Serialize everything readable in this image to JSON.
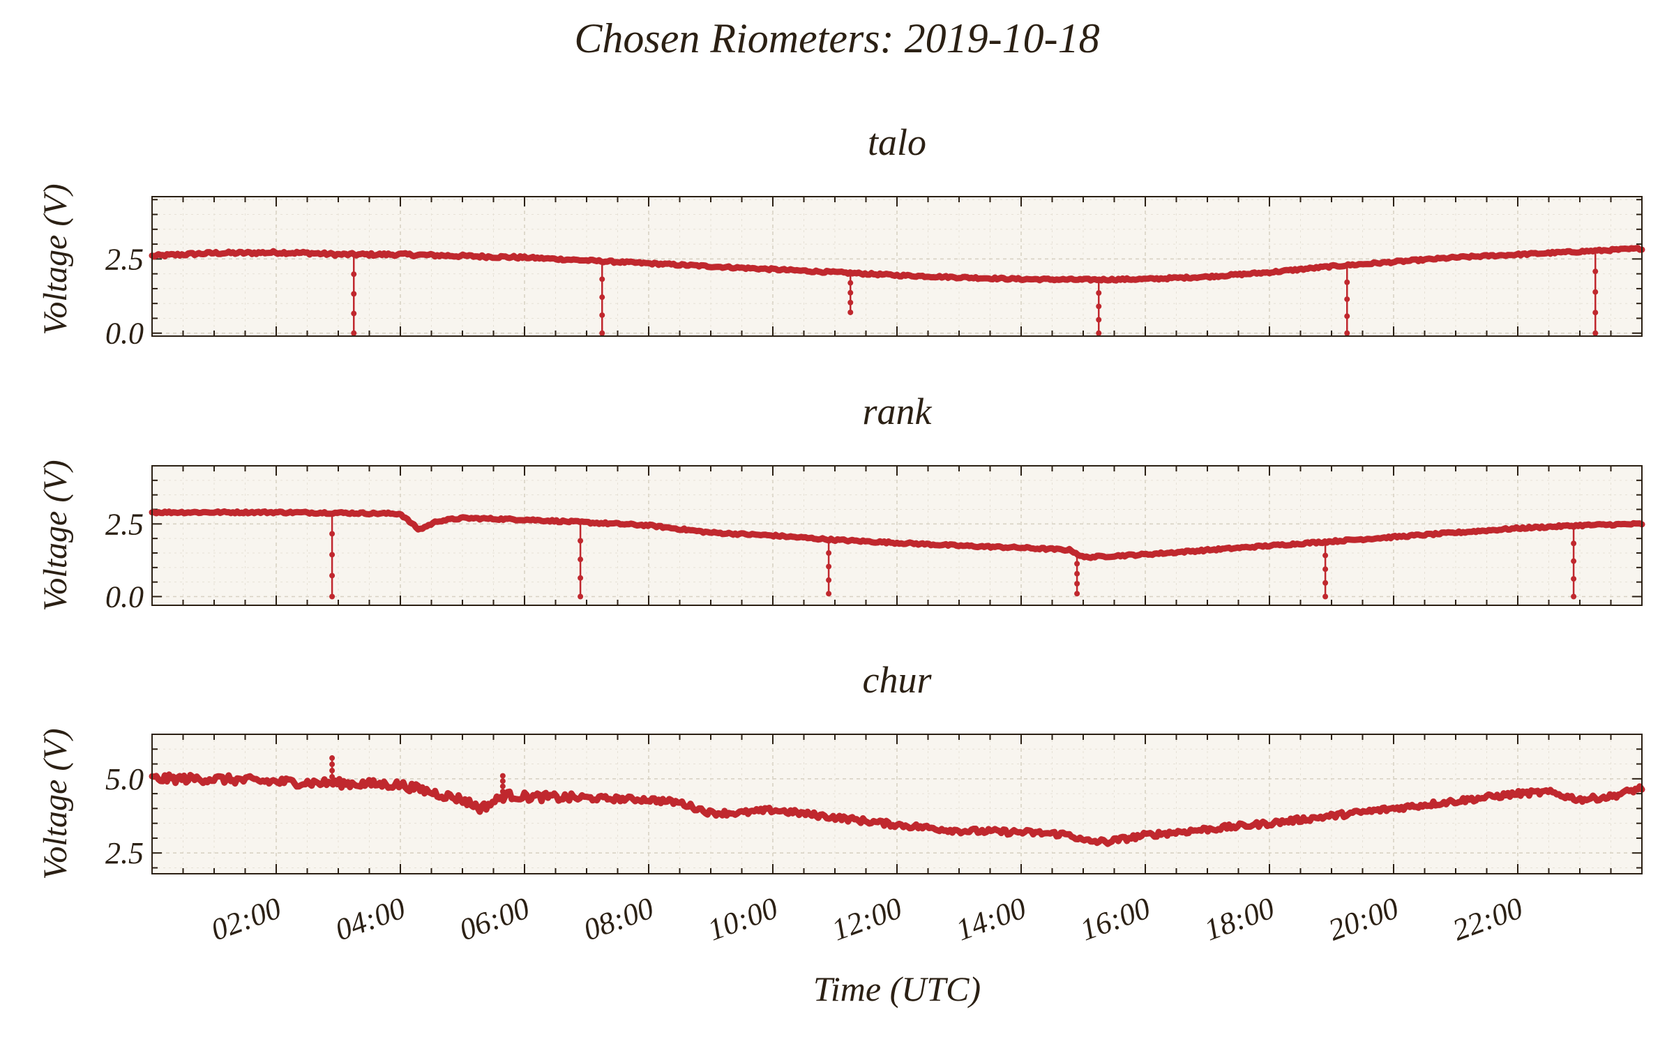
{
  "suptitle": "Chosen Riometers: 2019-10-18",
  "xlabel": "Time (UTC)",
  "ylabel": "Voltage (V)",
  "x_ticks": [
    "02:00",
    "04:00",
    "06:00",
    "08:00",
    "10:00",
    "12:00",
    "14:00",
    "16:00",
    "18:00",
    "20:00",
    "22:00"
  ],
  "color": "#c0282e",
  "chart_data": [
    {
      "type": "line",
      "title": "talo",
      "xlabel": "",
      "ylabel": "Voltage (V)",
      "x_unit": "hours UTC",
      "xlim": [
        0,
        24
      ],
      "ylim": [
        -0.1,
        4.6
      ],
      "y_ticks": [
        "0.0",
        "2.5"
      ],
      "grid": true,
      "series": [
        {
          "x": [
            0,
            0.5,
            1,
            1.5,
            2,
            2.5,
            3,
            4,
            5,
            6,
            7,
            8,
            9,
            10,
            11,
            12,
            13,
            14,
            15,
            16,
            17,
            18,
            19,
            20,
            21,
            22,
            23,
            24
          ],
          "y": [
            2.6,
            2.65,
            2.7,
            2.7,
            2.72,
            2.7,
            2.65,
            2.65,
            2.6,
            2.55,
            2.45,
            2.35,
            2.25,
            2.15,
            2.05,
            1.95,
            1.88,
            1.82,
            1.8,
            1.82,
            1.9,
            2.05,
            2.25,
            2.4,
            2.55,
            2.65,
            2.75,
            2.85
          ],
          "spikes": [
            {
              "x": 3.25,
              "y": 0.0
            },
            {
              "x": 7.25,
              "y": 0.0
            },
            {
              "x": 11.25,
              "y": 0.7
            },
            {
              "x": 15.25,
              "y": 0.0
            },
            {
              "x": 19.25,
              "y": 0.0
            },
            {
              "x": 23.25,
              "y": 0.0
            }
          ]
        }
      ]
    },
    {
      "type": "line",
      "title": "rank",
      "xlabel": "",
      "ylabel": "Voltage (V)",
      "x_unit": "hours UTC",
      "xlim": [
        0,
        24
      ],
      "ylim": [
        -0.3,
        4.5
      ],
      "y_ticks": [
        "0.0",
        "2.5"
      ],
      "grid": true,
      "series": [
        {
          "x": [
            0,
            1,
            2,
            3,
            4,
            4.3,
            4.6,
            5,
            6,
            7,
            8,
            9,
            10,
            11,
            12,
            13,
            14,
            14.8,
            15,
            16,
            17,
            18,
            19,
            20,
            21,
            22,
            23,
            24
          ],
          "y": [
            2.9,
            2.9,
            2.9,
            2.88,
            2.85,
            2.3,
            2.6,
            2.7,
            2.65,
            2.55,
            2.45,
            2.2,
            2.1,
            1.95,
            1.85,
            1.75,
            1.68,
            1.6,
            1.35,
            1.45,
            1.6,
            1.75,
            1.9,
            2.05,
            2.2,
            2.35,
            2.45,
            2.5
          ],
          "spikes": [
            {
              "x": 2.9,
              "y": 0.0
            },
            {
              "x": 6.9,
              "y": 0.0
            },
            {
              "x": 10.9,
              "y": 0.1
            },
            {
              "x": 14.9,
              "y": 0.1
            },
            {
              "x": 18.9,
              "y": 0.0
            },
            {
              "x": 22.9,
              "y": 0.0
            }
          ]
        }
      ]
    },
    {
      "type": "line",
      "title": "chur",
      "xlabel": "Time (UTC)",
      "ylabel": "Voltage (V)",
      "x_unit": "hours UTC",
      "xlim": [
        0,
        24
      ],
      "ylim": [
        1.8,
        6.5
      ],
      "y_ticks": [
        "2.5",
        "5.0"
      ],
      "grid": true,
      "series": [
        {
          "x": [
            0,
            1,
            2,
            3,
            4,
            4.5,
            5,
            5.3,
            5.7,
            6,
            7,
            8,
            8.5,
            9,
            9.5,
            10,
            11,
            12,
            13,
            14,
            14.8,
            15,
            15.4,
            16,
            17,
            18,
            19,
            20,
            21,
            22,
            22.5,
            23,
            23.5,
            24
          ],
          "y": [
            5.0,
            5.0,
            4.9,
            4.85,
            4.8,
            4.55,
            4.3,
            4.0,
            4.45,
            4.4,
            4.35,
            4.3,
            4.2,
            3.85,
            3.85,
            3.95,
            3.7,
            3.45,
            3.25,
            3.2,
            3.12,
            2.9,
            2.88,
            3.1,
            3.3,
            3.5,
            3.75,
            4.0,
            4.25,
            4.5,
            4.55,
            4.3,
            4.4,
            4.7
          ],
          "spikes": [
            {
              "x": 2.9,
              "y": 5.7
            },
            {
              "x": 5.65,
              "y": 5.1
            }
          ]
        }
      ]
    }
  ]
}
